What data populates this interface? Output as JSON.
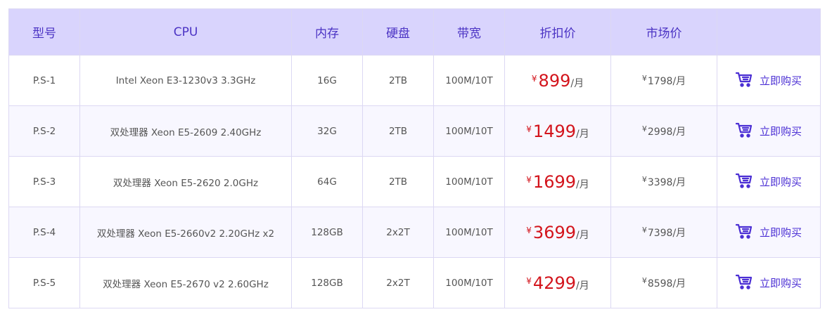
{
  "headers": [
    "型号",
    "CPU",
    "内存",
    "硬盘",
    "带宽",
    "折扣价",
    "市场价",
    ""
  ],
  "currency": "¥",
  "per_month": "/月",
  "buy_label": "立即购买",
  "colors": {
    "header_bg": "#d9d4fd",
    "header_text": "#4b33c4",
    "price": "#d3141c",
    "buy": "#4b2fd4"
  },
  "rows": [
    {
      "model": "P.S-1",
      "cpu": "Intel Xeon E3-1230v3 3.3GHz",
      "ram": "16G",
      "disk": "2TB",
      "bandwidth": "100M/10T",
      "price": "899",
      "market": "1798"
    },
    {
      "model": "P.S-2",
      "cpu": "双处理器 Xeon E5-2609 2.40GHz",
      "ram": "32G",
      "disk": "2TB",
      "bandwidth": "100M/10T",
      "price": "1499",
      "market": "2998"
    },
    {
      "model": "P.S-3",
      "cpu": "双处理器 Xeon E5-2620 2.0GHz",
      "ram": "64G",
      "disk": "2TB",
      "bandwidth": "100M/10T",
      "price": "1699",
      "market": "3398"
    },
    {
      "model": "P.S-4",
      "cpu": "双处理器 Xeon E5-2660v2 2.20GHz x2",
      "ram": "128GB",
      "disk": "2x2T",
      "bandwidth": "100M/10T",
      "price": "3699",
      "market": "7398"
    },
    {
      "model": "P.S-5",
      "cpu": "双处理器 Xeon E5-2670 v2 2.60GHz",
      "ram": "128GB",
      "disk": "2x2T",
      "bandwidth": "100M/10T",
      "price": "4299",
      "market": "8598"
    }
  ]
}
